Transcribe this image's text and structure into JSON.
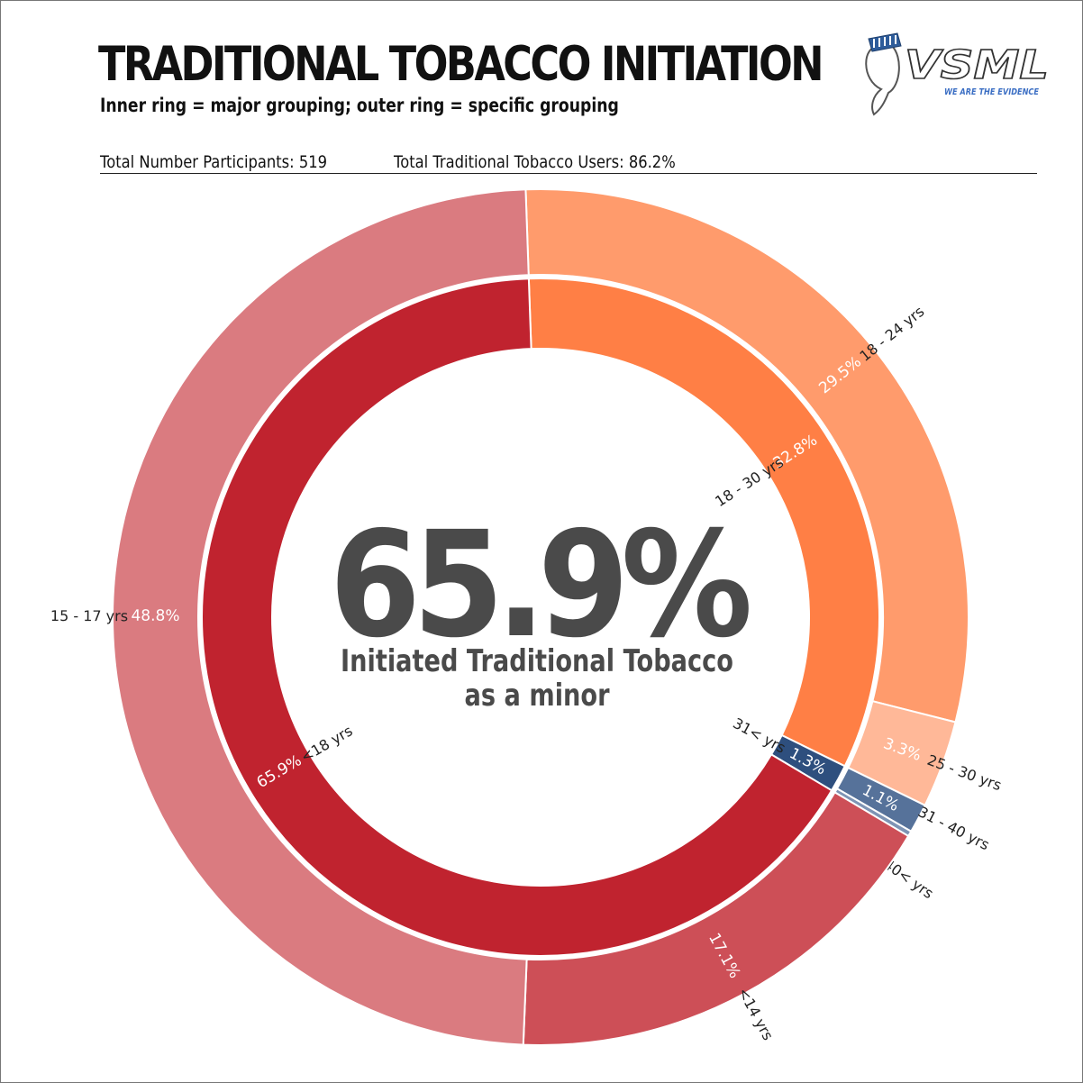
{
  "header": {
    "title": "TRADITIONAL TOBACCO INITIATION",
    "subtitle": "Inner ring = major grouping; outer ring = specific grouping",
    "participants": "Total Number Participants: 519",
    "users": "Total Traditional Tobacco Users: 86.2%"
  },
  "logo": {
    "text": "VSML",
    "tagline": "WE ARE THE EVIDENCE"
  },
  "center": {
    "value": "65.9%",
    "caption_line1": "Initiated Traditional Tobacco",
    "caption_line2": "as a minor"
  },
  "chart_data": {
    "type": "pie",
    "subtype": "sunburst",
    "title": "TRADITIONAL TOBACCO INITIATION",
    "inner": [
      {
        "name": "18 - 30 yrs",
        "value": 32.8,
        "label": "32.8%",
        "color": "#FF7F45"
      },
      {
        "name": "31< yrs",
        "value": 1.3,
        "label": "1.3%",
        "color": "#2E4F7E"
      },
      {
        "name": "<18 yrs",
        "value": 65.9,
        "label": "65.9%",
        "color": "#C0232F"
      }
    ],
    "outer": [
      {
        "name": "18 - 24 yrs",
        "value": 29.5,
        "label": "29.5%",
        "color": "#FF9B6C"
      },
      {
        "name": "25 - 30 yrs",
        "value": 3.3,
        "label": "3.3%",
        "color": "#FFB898"
      },
      {
        "name": "31 - 40 yrs",
        "value": 1.1,
        "label": "1.1%",
        "color": "#56729A"
      },
      {
        "name": "40< yrs",
        "value": 0.2,
        "label": "",
        "color": "#7E94B4"
      },
      {
        "name": "<14 yrs",
        "value": 17.1,
        "label": "17.1%",
        "color": "#CD4F57"
      },
      {
        "name": "15 - 17 yrs",
        "value": 48.8,
        "label": "48.8%",
        "color": "#DA7B80"
      }
    ],
    "start_angle_deg": -2,
    "direction": "clockwise"
  }
}
